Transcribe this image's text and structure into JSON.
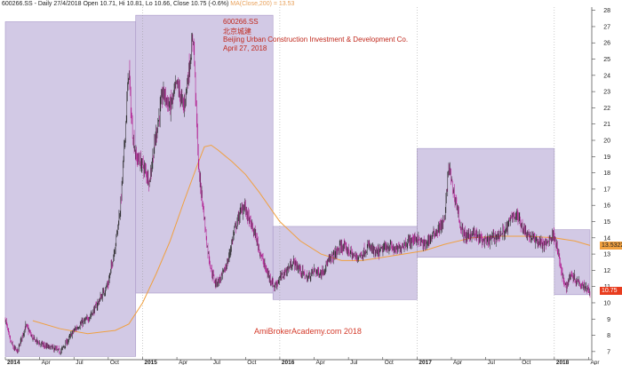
{
  "header": {
    "quote_line": "600266.SS - Daily 27/4/2018 Open 10.71, Hi 10.81, Lo 10.66, Close 10.75 (-0.6%)",
    "ma_line": "MA(Close,200) = 13.53"
  },
  "annotation": {
    "ticker": "600266.SS",
    "chinese_name": "北京城建",
    "company": "Beijing Urban Construction Investment & Development Co.",
    "date": "April 27, 2018"
  },
  "watermark": "AmiBrokerAcademy.com  2018",
  "price_tags": {
    "ma_value": "13.5322",
    "close_value": "10.75",
    "ma_color": "#f0a040",
    "close_color": "#e83c1e"
  },
  "chart_data": {
    "type": "candlestick",
    "ylim": [
      6.5,
      28.2
    ],
    "y_ticks": [
      7,
      8,
      9,
      10,
      11,
      12,
      13,
      14,
      15,
      16,
      17,
      18,
      19,
      20,
      21,
      22,
      23,
      24,
      25,
      26,
      27,
      28
    ],
    "x_labels": [
      "2014",
      "Apr",
      "Jul",
      "Oct",
      "2015",
      "Apr",
      "Jul",
      "Oct",
      "2016",
      "Apr",
      "Jul",
      "Oct",
      "2017",
      "Apr",
      "Jul",
      "Oct",
      "2018",
      "Apr"
    ],
    "x_label_bold": [
      "2014",
      "2015",
      "2016",
      "2017",
      "2018"
    ],
    "price_path": [
      {
        "t": 0.0,
        "p": 9.0
      },
      {
        "t": 0.03,
        "p": 7.8
      },
      {
        "t": 0.06,
        "p": 7.2
      },
      {
        "t": 0.09,
        "p": 7.0
      },
      {
        "t": 0.12,
        "p": 7.9
      },
      {
        "t": 0.15,
        "p": 8.6
      },
      {
        "t": 0.2,
        "p": 7.8
      },
      {
        "t": 0.25,
        "p": 7.5
      },
      {
        "t": 0.3,
        "p": 7.3
      },
      {
        "t": 0.35,
        "p": 7.2
      },
      {
        "t": 0.4,
        "p": 7.0
      },
      {
        "t": 0.45,
        "p": 7.6
      },
      {
        "t": 0.5,
        "p": 8.3
      },
      {
        "t": 0.55,
        "p": 8.7
      },
      {
        "t": 0.6,
        "p": 9.0
      },
      {
        "t": 0.65,
        "p": 9.6
      },
      {
        "t": 0.7,
        "p": 10.4
      },
      {
        "t": 0.75,
        "p": 11.2
      },
      {
        "t": 0.8,
        "p": 13.5
      },
      {
        "t": 0.84,
        "p": 16.0
      },
      {
        "t": 0.87,
        "p": 20.0
      },
      {
        "t": 0.9,
        "p": 24.5
      },
      {
        "t": 0.92,
        "p": 21.0
      },
      {
        "t": 0.95,
        "p": 19.0
      },
      {
        "t": 1.0,
        "p": 18.5
      },
      {
        "t": 1.05,
        "p": 17.5
      },
      {
        "t": 1.1,
        "p": 20.5
      },
      {
        "t": 1.15,
        "p": 23.0
      },
      {
        "t": 1.2,
        "p": 22.0
      },
      {
        "t": 1.25,
        "p": 23.5
      },
      {
        "t": 1.3,
        "p": 22.0
      },
      {
        "t": 1.34,
        "p": 24.5
      },
      {
        "t": 1.37,
        "p": 26.5
      },
      {
        "t": 1.39,
        "p": 22.0
      },
      {
        "t": 1.41,
        "p": 18.0
      },
      {
        "t": 1.44,
        "p": 16.0
      },
      {
        "t": 1.47,
        "p": 13.5
      },
      {
        "t": 1.5,
        "p": 12.0
      },
      {
        "t": 1.53,
        "p": 11.2
      },
      {
        "t": 1.57,
        "p": 11.5
      },
      {
        "t": 1.62,
        "p": 12.5
      },
      {
        "t": 1.67,
        "p": 14.5
      },
      {
        "t": 1.71,
        "p": 15.5
      },
      {
        "t": 1.74,
        "p": 16.0
      },
      {
        "t": 1.78,
        "p": 15.0
      },
      {
        "t": 1.82,
        "p": 14.2
      },
      {
        "t": 1.86,
        "p": 13.0
      },
      {
        "t": 1.9,
        "p": 12.0
      },
      {
        "t": 1.93,
        "p": 11.5
      },
      {
        "t": 1.96,
        "p": 11.0
      },
      {
        "t": 2.0,
        "p": 11.5
      },
      {
        "t": 2.05,
        "p": 12.0
      },
      {
        "t": 2.1,
        "p": 12.5
      },
      {
        "t": 2.15,
        "p": 12.0
      },
      {
        "t": 2.2,
        "p": 11.5
      },
      {
        "t": 2.25,
        "p": 12.0
      },
      {
        "t": 2.3,
        "p": 11.8
      },
      {
        "t": 2.35,
        "p": 12.5
      },
      {
        "t": 2.4,
        "p": 13.0
      },
      {
        "t": 2.45,
        "p": 13.5
      },
      {
        "t": 2.5,
        "p": 13.2
      },
      {
        "t": 2.55,
        "p": 12.8
      },
      {
        "t": 2.6,
        "p": 13.0
      },
      {
        "t": 2.65,
        "p": 13.5
      },
      {
        "t": 2.7,
        "p": 13.0
      },
      {
        "t": 2.75,
        "p": 13.3
      },
      {
        "t": 2.8,
        "p": 13.5
      },
      {
        "t": 2.85,
        "p": 13.2
      },
      {
        "t": 2.9,
        "p": 13.6
      },
      {
        "t": 2.95,
        "p": 13.8
      },
      {
        "t": 3.0,
        "p": 14.0
      },
      {
        "t": 3.05,
        "p": 13.5
      },
      {
        "t": 3.1,
        "p": 14.0
      },
      {
        "t": 3.15,
        "p": 14.5
      },
      {
        "t": 3.2,
        "p": 15.0
      },
      {
        "t": 3.23,
        "p": 18.5
      },
      {
        "t": 3.26,
        "p": 17.0
      },
      {
        "t": 3.29,
        "p": 16.0
      },
      {
        "t": 3.32,
        "p": 14.5
      },
      {
        "t": 3.36,
        "p": 14.0
      },
      {
        "t": 3.4,
        "p": 14.3
      },
      {
        "t": 3.45,
        "p": 14.0
      },
      {
        "t": 3.5,
        "p": 13.7
      },
      {
        "t": 3.55,
        "p": 14.0
      },
      {
        "t": 3.6,
        "p": 14.2
      },
      {
        "t": 3.65,
        "p": 14.5
      },
      {
        "t": 3.7,
        "p": 15.5
      },
      {
        "t": 3.74,
        "p": 15.2
      },
      {
        "t": 3.78,
        "p": 14.5
      },
      {
        "t": 3.83,
        "p": 14.0
      },
      {
        "t": 3.88,
        "p": 13.8
      },
      {
        "t": 3.93,
        "p": 13.5
      },
      {
        "t": 3.97,
        "p": 14.0
      },
      {
        "t": 4.0,
        "p": 14.2
      },
      {
        "t": 4.03,
        "p": 13.0
      },
      {
        "t": 4.06,
        "p": 11.5
      },
      {
        "t": 4.09,
        "p": 11.0
      },
      {
        "t": 4.12,
        "p": 11.8
      },
      {
        "t": 4.15,
        "p": 11.5
      },
      {
        "t": 4.19,
        "p": 11.2
      },
      {
        "t": 4.23,
        "p": 11.0
      },
      {
        "t": 4.26,
        "p": 10.75
      }
    ],
    "ma200_path": [
      {
        "t": 0.0,
        "p": null
      },
      {
        "t": 0.2,
        "p": 8.9
      },
      {
        "t": 0.4,
        "p": 8.4
      },
      {
        "t": 0.6,
        "p": 8.1
      },
      {
        "t": 0.8,
        "p": 8.3
      },
      {
        "t": 0.9,
        "p": 8.7
      },
      {
        "t": 1.0,
        "p": 10.0
      },
      {
        "t": 1.1,
        "p": 11.8
      },
      {
        "t": 1.2,
        "p": 13.8
      },
      {
        "t": 1.3,
        "p": 16.2
      },
      {
        "t": 1.4,
        "p": 18.5
      },
      {
        "t": 1.45,
        "p": 19.6
      },
      {
        "t": 1.5,
        "p": 19.7
      },
      {
        "t": 1.55,
        "p": 19.4
      },
      {
        "t": 1.65,
        "p": 18.7
      },
      {
        "t": 1.75,
        "p": 17.9
      },
      {
        "t": 1.85,
        "p": 16.8
      },
      {
        "t": 2.0,
        "p": 15.0
      },
      {
        "t": 2.15,
        "p": 13.8
      },
      {
        "t": 2.3,
        "p": 13.0
      },
      {
        "t": 2.45,
        "p": 12.6
      },
      {
        "t": 2.6,
        "p": 12.6
      },
      {
        "t": 2.75,
        "p": 12.8
      },
      {
        "t": 2.9,
        "p": 13.0
      },
      {
        "t": 3.05,
        "p": 13.2
      },
      {
        "t": 3.2,
        "p": 13.6
      },
      {
        "t": 3.4,
        "p": 14.0
      },
      {
        "t": 3.6,
        "p": 14.1
      },
      {
        "t": 3.8,
        "p": 14.1
      },
      {
        "t": 4.0,
        "p": 14.0
      },
      {
        "t": 4.15,
        "p": 13.8
      },
      {
        "t": 4.26,
        "p": 13.53
      }
    ],
    "range_boxes": [
      {
        "t0": 0.0,
        "t1": 0.95,
        "low": 6.7,
        "high": 27.3
      },
      {
        "t0": 0.95,
        "t1": 1.95,
        "low": 10.6,
        "high": 27.7
      },
      {
        "t0": 1.95,
        "t1": 3.0,
        "low": 10.2,
        "high": 14.7
      },
      {
        "t0": 3.0,
        "t1": 4.0,
        "low": 12.8,
        "high": 19.5
      },
      {
        "t0": 4.0,
        "t1": 4.26,
        "low": 10.5,
        "high": 14.5
      }
    ],
    "colors": {
      "box_fill": "#cac0e0",
      "up": "#222222",
      "down": "#b0148c",
      "ma": "#f0a040"
    }
  }
}
